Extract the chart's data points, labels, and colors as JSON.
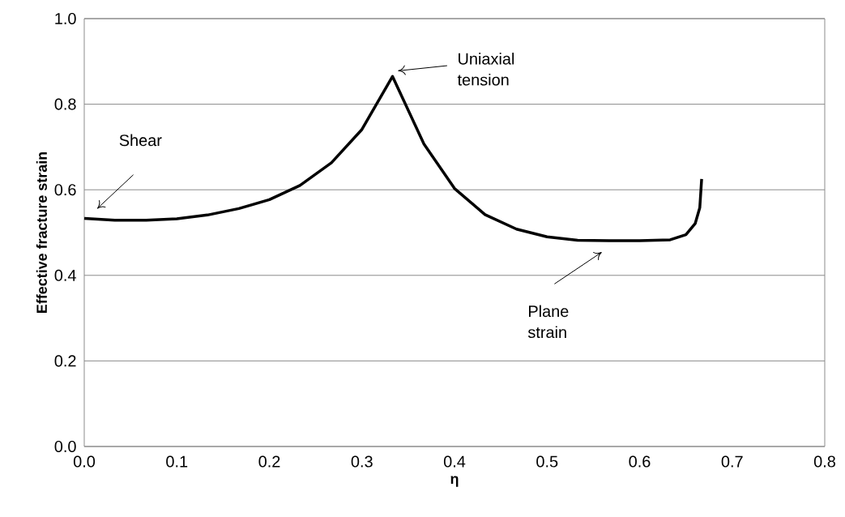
{
  "chart_data": {
    "type": "line",
    "xlabel": "η",
    "ylabel": "Effective fracture strain",
    "x": [
      0,
      0.033,
      0.067,
      0.1,
      0.133,
      0.167,
      0.2,
      0.233,
      0.267,
      0.3,
      0.333,
      0.367,
      0.4,
      0.433,
      0.467,
      0.5,
      0.533,
      0.567,
      0.6,
      0.633,
      0.65,
      0.66,
      0.665,
      0.667
    ],
    "series": [
      {
        "color": "#000000",
        "values": [
          0.533,
          0.529,
          0.529,
          0.532,
          0.541,
          0.556,
          0.577,
          0.61,
          0.663,
          0.741,
          0.865,
          0.707,
          0.603,
          0.542,
          0.508,
          0.49,
          0.482,
          0.481,
          0.481,
          0.483,
          0.495,
          0.521,
          0.558,
          0.625
        ]
      }
    ],
    "xlim": [
      0,
      0.8
    ],
    "xticks": [
      {
        "value": 0,
        "label": "0.0"
      },
      0.1,
      0.2,
      0.3,
      0.4,
      0.5,
      0.6,
      0.7,
      0.8
    ],
    "ylim": [
      0,
      1
    ],
    "yticks": [
      {
        "value": 0,
        "label": "0.0"
      },
      0.2,
      0.4,
      0.6,
      0.8,
      {
        "value": 1,
        "label": "1.0"
      }
    ],
    "grid": "y",
    "marker": "none",
    "line_style": "solid",
    "annotations": [
      "Shear",
      "Uniaxial tension",
      "Plane strain"
    ]
  }
}
